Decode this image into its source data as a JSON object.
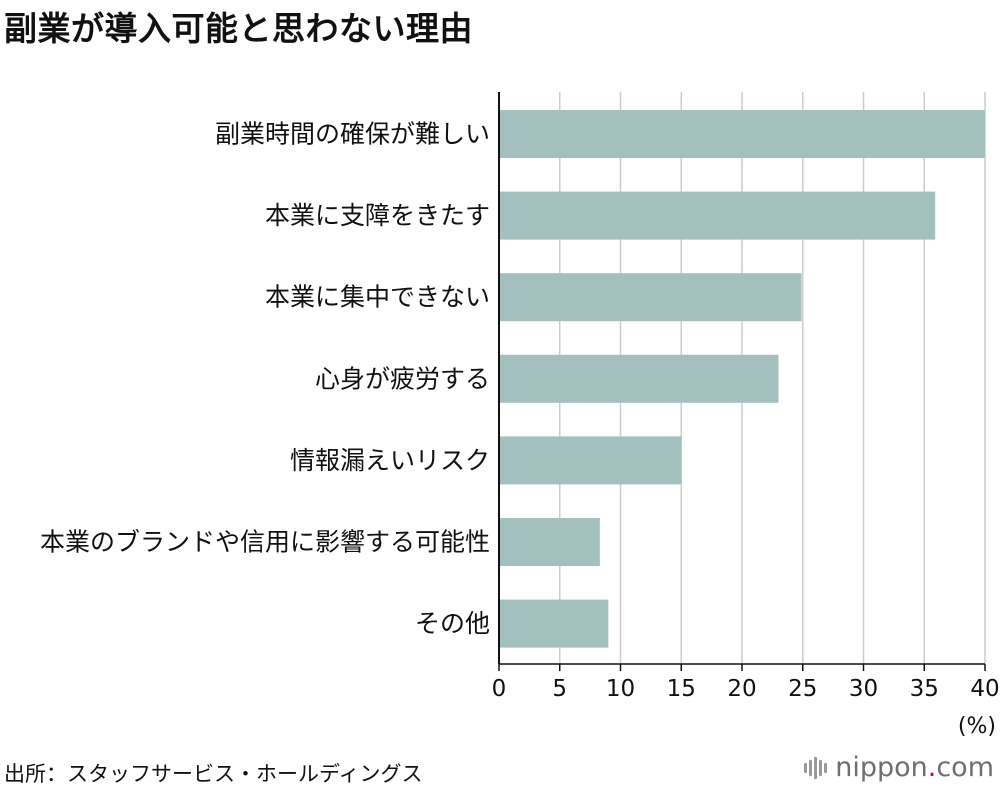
{
  "title": "副業が導入可能と思わない理由",
  "source": "出所：スタッフサービス・ホールディングス",
  "logo": {
    "name": "nippon",
    "dot": ".",
    "tld": "com"
  },
  "colors": {
    "bar": "#a3c0bf",
    "grid": "#cccccc",
    "axis": "#111111"
  },
  "chart_data": {
    "type": "bar",
    "orientation": "horizontal",
    "title": "副業が導入可能と思わない理由",
    "categories": [
      "副業時間の確保が難しい",
      "本業に支障をきたす",
      "本業に集中できない",
      "心身が疲労する",
      "情報漏えいリスク",
      "本業のブランドや信用に影響する可能性",
      "その他"
    ],
    "values": [
      40,
      35.9,
      24.9,
      23,
      15,
      8.3,
      9
    ],
    "xlim": [
      0,
      40
    ],
    "xticks": [
      "0",
      "5",
      "10",
      "15",
      "20",
      "25",
      "30",
      "35",
      "40"
    ],
    "xticks_values": [
      0,
      5,
      10,
      15,
      20,
      25,
      30,
      35,
      40
    ],
    "xlabel": "(%)",
    "ylabel": "",
    "grid": true
  }
}
